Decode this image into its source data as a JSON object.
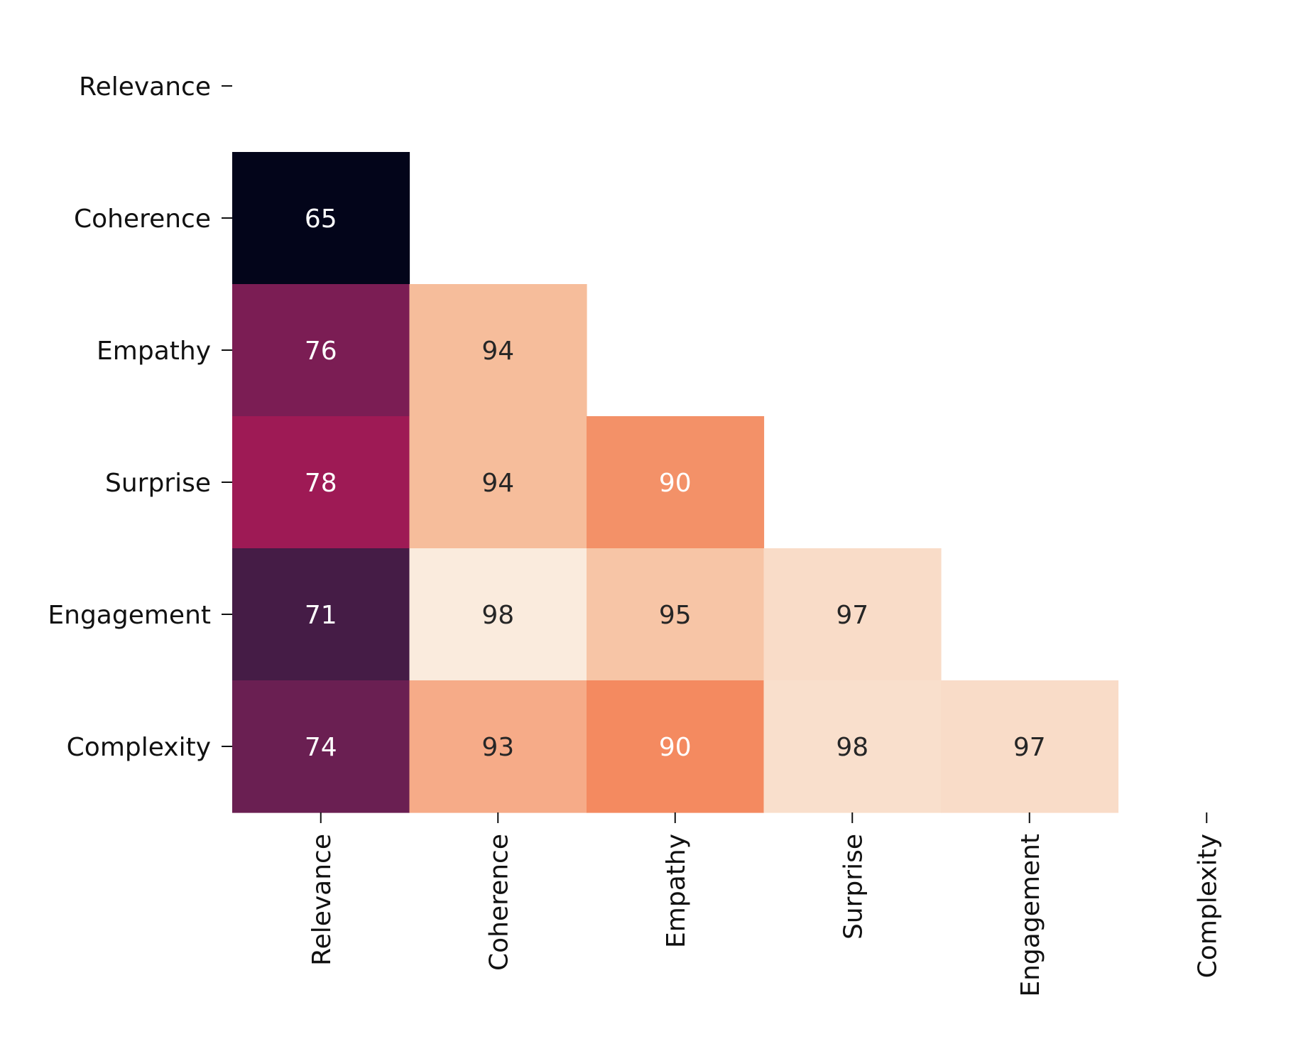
{
  "chart_data": {
    "type": "heatmap",
    "title": "",
    "xlabel": "",
    "ylabel": "",
    "x_categories": [
      "Relevance",
      "Coherence",
      "Empathy",
      "Surprise",
      "Engagement",
      "Complexity"
    ],
    "y_categories": [
      "Relevance",
      "Coherence",
      "Empathy",
      "Surprise",
      "Engagement",
      "Complexity"
    ],
    "mask": "upper-triangle-including-diagonal",
    "colormap": "rocket",
    "value_range": [
      65,
      98
    ],
    "cells": [
      {
        "row": "Coherence",
        "col": "Relevance",
        "value": 65,
        "label": "65",
        "color": "#03051a"
      },
      {
        "row": "Empathy",
        "col": "Relevance",
        "value": 76,
        "label": "76",
        "color": "#7b1d54"
      },
      {
        "row": "Empathy",
        "col": "Coherence",
        "value": 94,
        "label": "94",
        "color": "#f6bd9b"
      },
      {
        "row": "Surprise",
        "col": "Relevance",
        "value": 78,
        "label": "78",
        "color": "#9e1a55"
      },
      {
        "row": "Surprise",
        "col": "Coherence",
        "value": 94,
        "label": "94",
        "color": "#f6bd9b"
      },
      {
        "row": "Surprise",
        "col": "Empathy",
        "value": 90,
        "label": "90",
        "color": "#f39168"
      },
      {
        "row": "Engagement",
        "col": "Relevance",
        "value": 71,
        "label": "71",
        "color": "#451c46"
      },
      {
        "row": "Engagement",
        "col": "Coherence",
        "value": 98,
        "label": "98",
        "color": "#faebdd"
      },
      {
        "row": "Engagement",
        "col": "Empathy",
        "value": 95,
        "label": "95",
        "color": "#f7c5a6"
      },
      {
        "row": "Engagement",
        "col": "Surprise",
        "value": 97,
        "label": "97",
        "color": "#f9dcc8"
      },
      {
        "row": "Complexity",
        "col": "Relevance",
        "value": 74,
        "label": "74",
        "color": "#6a1f52"
      },
      {
        "row": "Complexity",
        "col": "Coherence",
        "value": 93,
        "label": "93",
        "color": "#f6ab88"
      },
      {
        "row": "Complexity",
        "col": "Empathy",
        "value": 90,
        "label": "90",
        "color": "#f48a60"
      },
      {
        "row": "Complexity",
        "col": "Surprise",
        "value": 98,
        "label": "98",
        "color": "#f9dfcc"
      },
      {
        "row": "Complexity",
        "col": "Engagement",
        "value": 97,
        "label": "97",
        "color": "#f9dcc8"
      }
    ],
    "text_color_dark_cells": "#ffffff",
    "text_color_light_cells": "#262626",
    "colorbar": false,
    "grid": false
  }
}
